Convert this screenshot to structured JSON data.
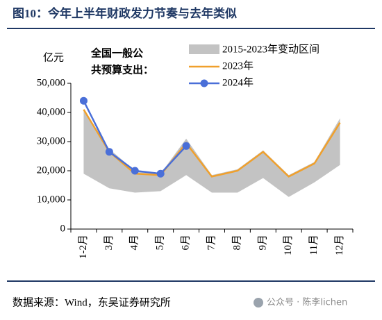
{
  "chart_data": {
    "type": "line",
    "title": "图10：今年上半年财政发力节奏与去年类似",
    "y_axis_label": "亿元",
    "annotation": [
      "全国一般公",
      "共预算支出："
    ],
    "categories": [
      "1-2月",
      "3月",
      "4月",
      "5月",
      "6月",
      "7月",
      "8月",
      "9月",
      "10月",
      "11月",
      "12月"
    ],
    "band": {
      "name": "2015-2023年变动区间",
      "color": "#c3c3c3",
      "lower": [
        19000,
        14000,
        12500,
        13000,
        18500,
        12500,
        12500,
        17500,
        11000,
        16000,
        22000
      ],
      "upper": [
        41000,
        27500,
        20000,
        19000,
        31000,
        18500,
        20500,
        27000,
        18500,
        23000,
        38000
      ]
    },
    "series": [
      {
        "name": "2023年",
        "color": "#f0a02c",
        "values": [
          41000,
          26500,
          19000,
          18500,
          29500,
          18000,
          20000,
          26500,
          18000,
          22500,
          36500
        ]
      },
      {
        "name": "2024年",
        "color": "#4a6fd8",
        "marker": true,
        "values": [
          44000,
          26500,
          20000,
          19000,
          28500,
          null,
          null,
          null,
          null,
          null,
          null
        ]
      }
    ],
    "ylim": [
      0,
      50000
    ],
    "yticks": [
      0,
      {
        "value": 10000,
        "label": "10,000"
      },
      {
        "value": 20000,
        "label": "20,000"
      },
      {
        "value": 30000,
        "label": "30,000"
      },
      {
        "value": 40000,
        "label": "40,000"
      },
      {
        "value": 50000,
        "label": "50,000"
      }
    ],
    "source": "数据来源：Wind，东吴证券研究所",
    "watermark": "公众号 · 陈李lichen"
  }
}
